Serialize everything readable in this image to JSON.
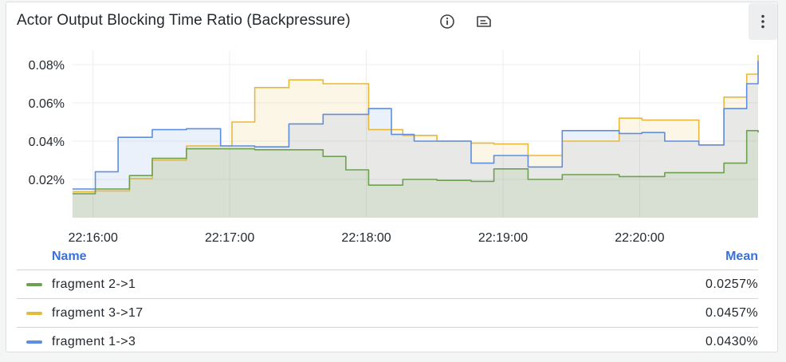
{
  "panel": {
    "title": "Actor Output Blocking Time Ratio (Backpressure)",
    "icons": [
      "info-icon",
      "notes-icon",
      "menu-icon"
    ]
  },
  "legend": {
    "name_header": "Name",
    "mean_header": "Mean"
  },
  "chart_data": {
    "type": "line",
    "x_ticks": [
      "22:16:00",
      "22:17:00",
      "22:18:00",
      "22:19:00",
      "22:20:00"
    ],
    "y_ticks": [
      "0.02%",
      "0.04%",
      "0.06%",
      "0.08%"
    ],
    "xlim": [
      "22:15:51",
      "22:20:52"
    ],
    "ylim": [
      0.0,
      0.0875
    ],
    "grid": true,
    "fill": true,
    "step": true,
    "legend_position": "bottom",
    "series": [
      {
        "name": "fragment 2->1",
        "color": "#6ea14f",
        "mean": "0.0257%",
        "x": [
          "22:15:51",
          "22:16:01",
          "22:16:16",
          "22:16:26",
          "22:16:41",
          "22:16:56",
          "22:17:11",
          "22:17:26",
          "22:17:41",
          "22:17:51",
          "22:18:01",
          "22:18:16",
          "22:18:31",
          "22:18:46",
          "22:18:56",
          "22:19:11",
          "22:19:26",
          "22:19:36",
          "22:19:51",
          "22:20:11",
          "22:20:26",
          "22:20:37",
          "22:20:47",
          "22:20:52"
        ],
        "values": [
          0.0125,
          0.015,
          0.022,
          0.031,
          0.036,
          0.036,
          0.0355,
          0.0355,
          0.032,
          0.025,
          0.017,
          0.02,
          0.0195,
          0.019,
          0.0255,
          0.02,
          0.0225,
          0.0225,
          0.0215,
          0.0235,
          0.0235,
          0.0285,
          0.0455,
          0.0445
        ]
      },
      {
        "name": "fragment 3->17",
        "color": "#e8b83a",
        "mean": "0.0457%",
        "x": [
          "22:15:51",
          "22:16:01",
          "22:16:16",
          "22:16:26",
          "22:16:41",
          "22:16:51",
          "22:17:01",
          "22:17:11",
          "22:17:26",
          "22:17:41",
          "22:18:01",
          "22:18:16",
          "22:18:31",
          "22:18:46",
          "22:18:56",
          "22:19:11",
          "22:19:26",
          "22:19:36",
          "22:19:51",
          "22:20:01",
          "22:20:11",
          "22:20:26",
          "22:20:37",
          "22:20:47",
          "22:20:52"
        ],
        "values": [
          0.0135,
          0.014,
          0.0205,
          0.03,
          0.0375,
          0.0375,
          0.05,
          0.068,
          0.072,
          0.07,
          0.046,
          0.043,
          0.04,
          0.039,
          0.0385,
          0.0325,
          0.04,
          0.04,
          0.052,
          0.051,
          0.051,
          0.038,
          0.063,
          0.075,
          0.085
        ]
      },
      {
        "name": "fragment 1->3",
        "color": "#5e8ee0",
        "mean": "0.0430%",
        "x": [
          "22:15:51",
          "22:16:01",
          "22:16:11",
          "22:16:26",
          "22:16:41",
          "22:16:56",
          "22:17:11",
          "22:17:26",
          "22:17:41",
          "22:18:01",
          "22:18:11",
          "22:18:21",
          "22:18:36",
          "22:18:46",
          "22:18:56",
          "22:19:11",
          "22:19:26",
          "22:19:36",
          "22:19:51",
          "22:20:01",
          "22:20:11",
          "22:20:26",
          "22:20:37",
          "22:20:47",
          "22:20:52"
        ],
        "values": [
          0.015,
          0.024,
          0.042,
          0.046,
          0.0465,
          0.0375,
          0.037,
          0.049,
          0.054,
          0.057,
          0.0435,
          0.04,
          0.04,
          0.0285,
          0.0325,
          0.0265,
          0.0455,
          0.0455,
          0.044,
          0.0445,
          0.04,
          0.038,
          0.057,
          0.07,
          0.082
        ]
      }
    ]
  }
}
